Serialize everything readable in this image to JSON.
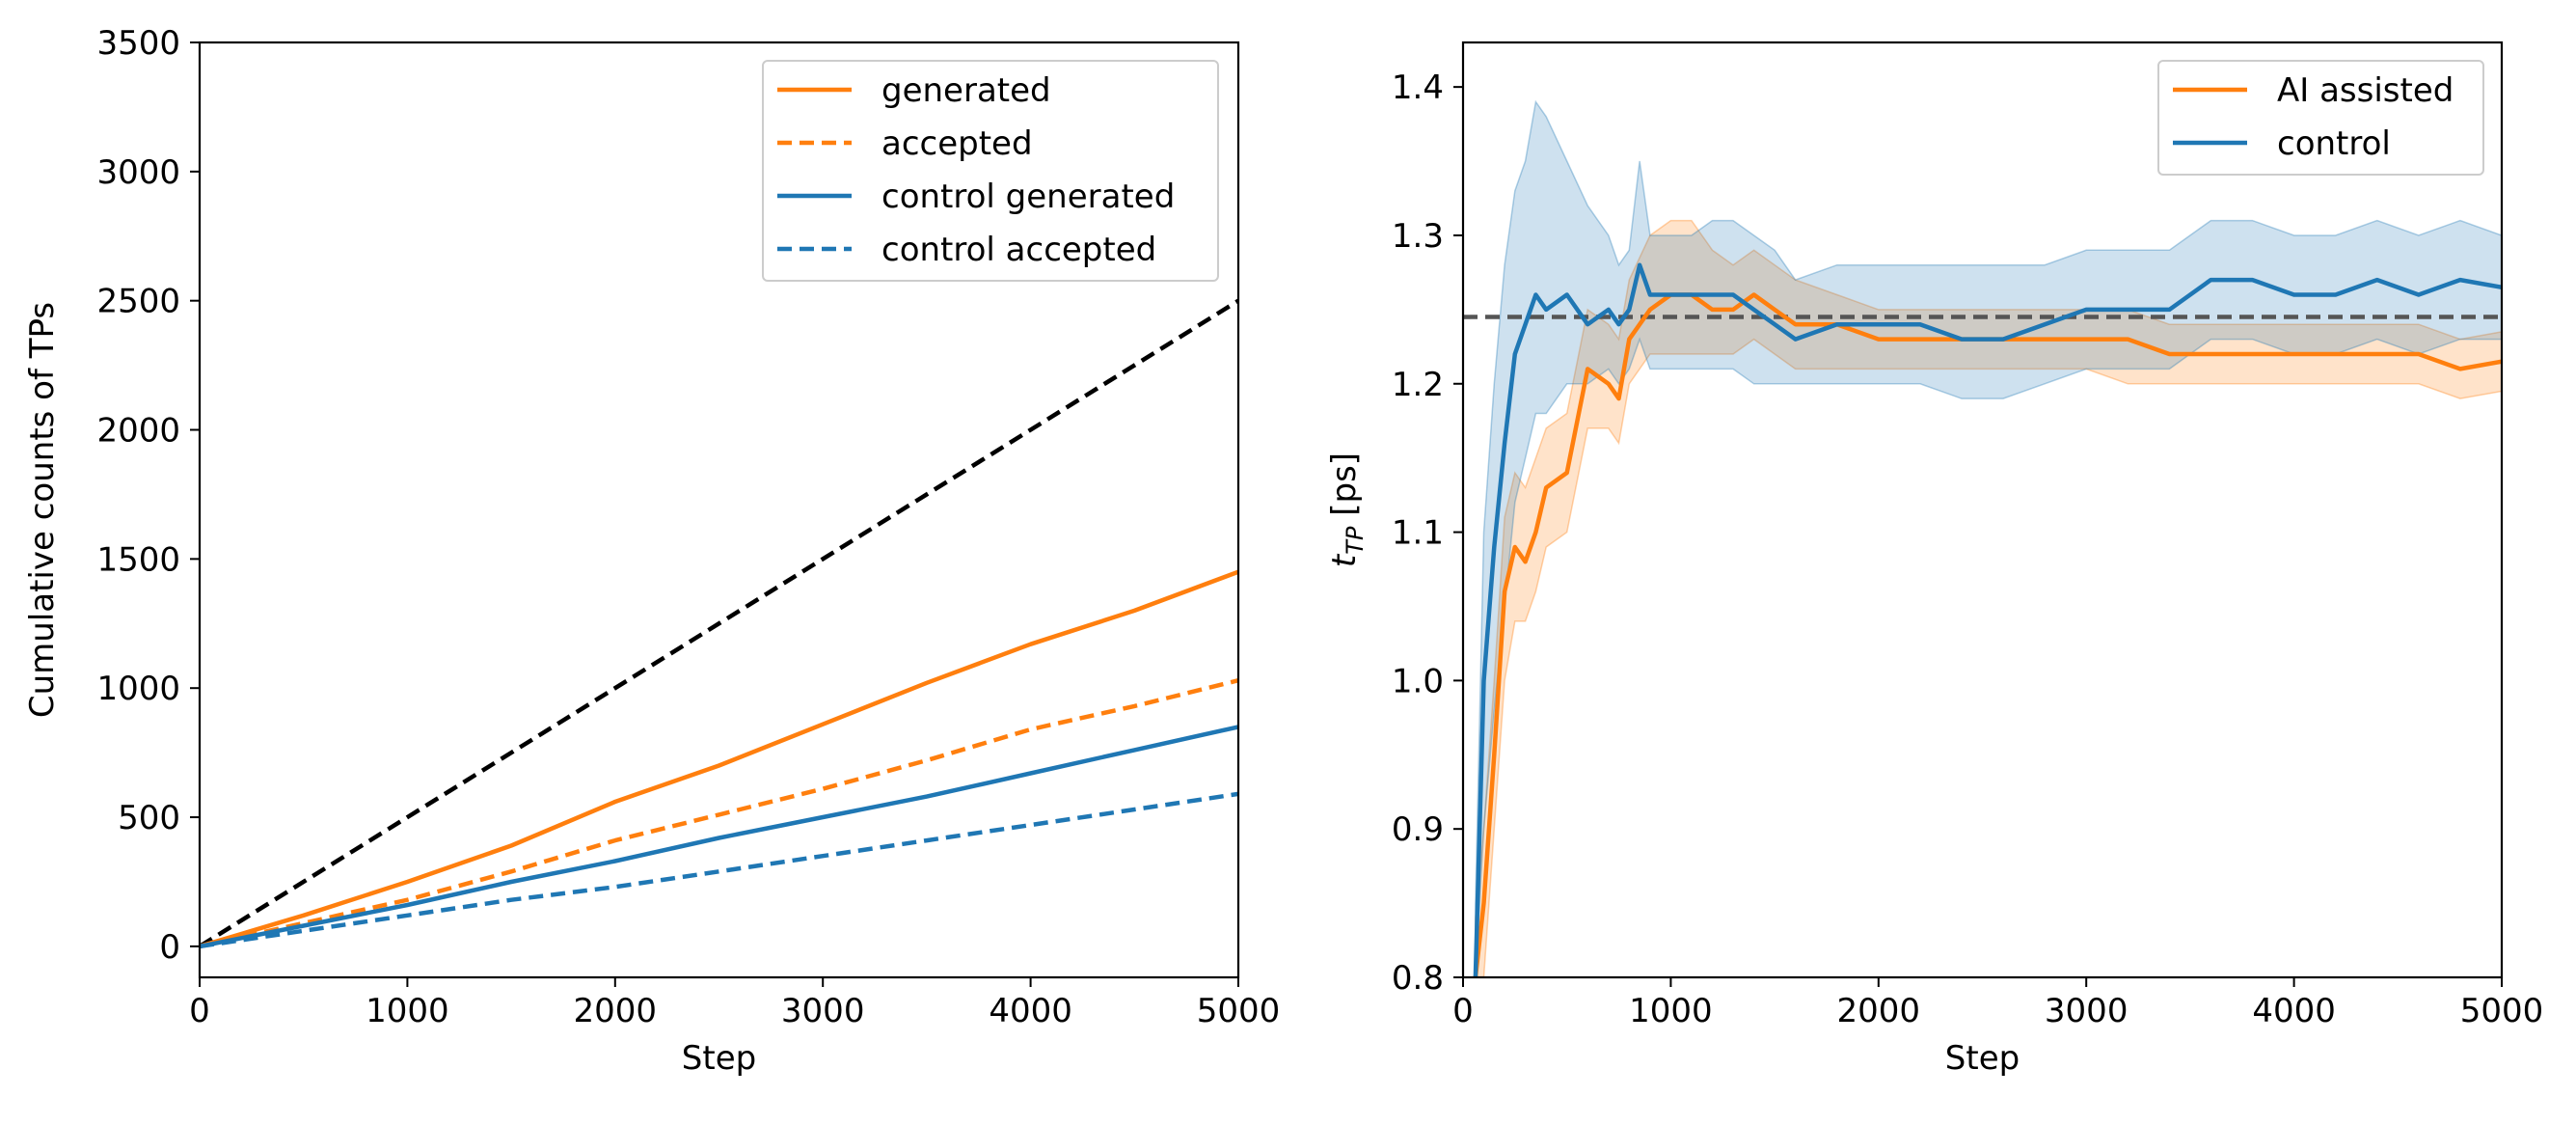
{
  "chart_data": [
    {
      "type": "line",
      "xlabel": "Step",
      "ylabel": "Cumulative counts of TPs",
      "xlim": [
        0,
        5000
      ],
      "ylim": [
        -120,
        3500
      ],
      "xticks": [
        0,
        1000,
        2000,
        3000,
        4000,
        5000
      ],
      "yticks": [
        0,
        500,
        1000,
        1500,
        2000,
        2500,
        3000,
        3500
      ],
      "xtick_labels": [
        "0",
        "1000",
        "2000",
        "3000",
        "4000",
        "5000"
      ],
      "ytick_labels": [
        "0",
        "500",
        "1000",
        "1500",
        "2000",
        "2500",
        "3000",
        "3500"
      ],
      "legend_position": "top-right",
      "series": [
        {
          "name": "generated",
          "color": "#ff7f0e",
          "style": "solid",
          "x": [
            0,
            500,
            1000,
            1500,
            2000,
            2500,
            3000,
            3500,
            4000,
            4500,
            5000
          ],
          "y": [
            0,
            120,
            250,
            390,
            560,
            700,
            860,
            1020,
            1170,
            1300,
            1450
          ]
        },
        {
          "name": "accepted",
          "color": "#ff7f0e",
          "style": "dashed",
          "x": [
            0,
            500,
            1000,
            1500,
            2000,
            2500,
            3000,
            3500,
            4000,
            4500,
            5000
          ],
          "y": [
            0,
            90,
            180,
            290,
            410,
            510,
            610,
            720,
            840,
            930,
            1030
          ]
        },
        {
          "name": "control generated",
          "color": "#1f77b4",
          "style": "solid",
          "x": [
            0,
            500,
            1000,
            1500,
            2000,
            2500,
            3000,
            3500,
            4000,
            4500,
            5000
          ],
          "y": [
            0,
            80,
            160,
            250,
            330,
            420,
            500,
            580,
            670,
            760,
            850
          ]
        },
        {
          "name": "control accepted",
          "color": "#1f77b4",
          "style": "dashed",
          "x": [
            0,
            500,
            1000,
            1500,
            2000,
            2500,
            3000,
            3500,
            4000,
            4500,
            5000
          ],
          "y": [
            0,
            60,
            120,
            180,
            230,
            290,
            350,
            410,
            470,
            530,
            590
          ]
        }
      ],
      "reference_line": {
        "x": [
          0,
          5000
        ],
        "y": [
          0,
          2500
        ],
        "color": "#000000",
        "style": "dashed"
      }
    },
    {
      "type": "line",
      "xlabel": "Step",
      "ylabel_main": "t",
      "ylabel_sub": "TP",
      "ylabel_unit": " [ps]",
      "xlim": [
        0,
        5000
      ],
      "ylim": [
        0.8,
        1.43
      ],
      "xticks": [
        0,
        1000,
        2000,
        3000,
        4000,
        5000
      ],
      "yticks": [
        0.8,
        0.9,
        1.0,
        1.1,
        1.2,
        1.3,
        1.4
      ],
      "xtick_labels": [
        "0",
        "1000",
        "2000",
        "3000",
        "4000",
        "5000"
      ],
      "ytick_labels": [
        "0.8",
        "0.9",
        "1.0",
        "1.1",
        "1.2",
        "1.3",
        "1.4"
      ],
      "legend_position": "top-right",
      "reference_line": {
        "y": 1.245,
        "color": "#555555",
        "style": "dashed"
      },
      "series": [
        {
          "name": "AI assisted",
          "color": "#ff7f0e",
          "x": [
            60,
            100,
            150,
            200,
            250,
            300,
            350,
            400,
            500,
            600,
            700,
            750,
            800,
            900,
            1000,
            1100,
            1200,
            1300,
            1400,
            1500,
            1600,
            1800,
            2000,
            2200,
            2400,
            2600,
            2800,
            3000,
            3200,
            3400,
            3600,
            3800,
            4000,
            4200,
            4400,
            4600,
            4800,
            5000
          ],
          "y": [
            0.8,
            0.85,
            0.95,
            1.06,
            1.09,
            1.08,
            1.1,
            1.13,
            1.14,
            1.21,
            1.2,
            1.19,
            1.23,
            1.25,
            1.26,
            1.26,
            1.25,
            1.25,
            1.26,
            1.25,
            1.24,
            1.24,
            1.23,
            1.23,
            1.23,
            1.23,
            1.23,
            1.23,
            1.23,
            1.22,
            1.22,
            1.22,
            1.22,
            1.22,
            1.22,
            1.22,
            1.21,
            1.215
          ],
          "lower": [
            0.8,
            0.8,
            0.9,
            1.0,
            1.04,
            1.04,
            1.06,
            1.09,
            1.1,
            1.17,
            1.17,
            1.16,
            1.2,
            1.22,
            1.22,
            1.22,
            1.22,
            1.22,
            1.23,
            1.22,
            1.21,
            1.21,
            1.21,
            1.21,
            1.21,
            1.21,
            1.21,
            1.21,
            1.2,
            1.2,
            1.2,
            1.2,
            1.2,
            1.2,
            1.2,
            1.2,
            1.19,
            1.195
          ],
          "upper": [
            0.84,
            0.9,
            1.0,
            1.11,
            1.14,
            1.13,
            1.15,
            1.17,
            1.18,
            1.25,
            1.24,
            1.23,
            1.27,
            1.3,
            1.31,
            1.31,
            1.29,
            1.28,
            1.29,
            1.28,
            1.27,
            1.26,
            1.25,
            1.25,
            1.25,
            1.25,
            1.25,
            1.25,
            1.25,
            1.24,
            1.24,
            1.24,
            1.24,
            1.24,
            1.24,
            1.24,
            1.23,
            1.235
          ]
        },
        {
          "name": "control",
          "color": "#1f77b4",
          "x": [
            60,
            100,
            150,
            200,
            250,
            300,
            350,
            400,
            500,
            600,
            700,
            750,
            800,
            850,
            900,
            1000,
            1100,
            1200,
            1300,
            1400,
            1500,
            1600,
            1800,
            2000,
            2200,
            2400,
            2600,
            2800,
            3000,
            3200,
            3400,
            3600,
            3800,
            4000,
            4200,
            4400,
            4600,
            4800,
            5000
          ],
          "y": [
            0.8,
            1.0,
            1.09,
            1.16,
            1.22,
            1.24,
            1.26,
            1.25,
            1.26,
            1.24,
            1.25,
            1.24,
            1.25,
            1.28,
            1.26,
            1.26,
            1.26,
            1.26,
            1.26,
            1.25,
            1.24,
            1.23,
            1.24,
            1.24,
            1.24,
            1.23,
            1.23,
            1.24,
            1.25,
            1.25,
            1.25,
            1.27,
            1.27,
            1.26,
            1.26,
            1.27,
            1.26,
            1.27,
            1.265
          ],
          "lower": [
            0.8,
            0.9,
            0.98,
            1.05,
            1.12,
            1.15,
            1.18,
            1.18,
            1.2,
            1.2,
            1.21,
            1.2,
            1.21,
            1.23,
            1.21,
            1.21,
            1.21,
            1.21,
            1.21,
            1.2,
            1.2,
            1.2,
            1.2,
            1.2,
            1.2,
            1.19,
            1.19,
            1.2,
            1.21,
            1.21,
            1.21,
            1.23,
            1.23,
            1.22,
            1.22,
            1.23,
            1.22,
            1.23,
            1.23
          ],
          "upper": [
            0.85,
            1.1,
            1.2,
            1.28,
            1.33,
            1.35,
            1.39,
            1.38,
            1.35,
            1.32,
            1.3,
            1.28,
            1.29,
            1.35,
            1.3,
            1.3,
            1.3,
            1.31,
            1.31,
            1.3,
            1.29,
            1.27,
            1.28,
            1.28,
            1.28,
            1.28,
            1.28,
            1.28,
            1.29,
            1.29,
            1.29,
            1.31,
            1.31,
            1.3,
            1.3,
            1.31,
            1.3,
            1.31,
            1.3
          ]
        }
      ]
    }
  ]
}
